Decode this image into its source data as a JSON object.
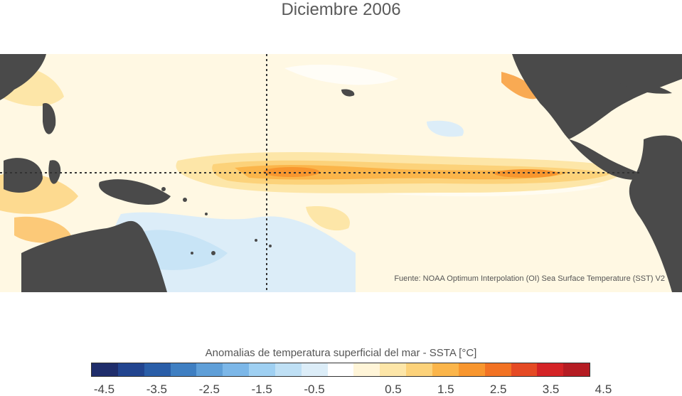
{
  "title": "Diciembre 2006",
  "source": "Fuente: NOAA Optimum Interpolation (OI) Sea Surface Temperature (SST) V2",
  "legend": {
    "title": "Anomalias de temperatura superficial del mar - SSTA  [°C]",
    "colors": [
      "#1f2d6b",
      "#22448f",
      "#2a5ea8",
      "#3f7fc2",
      "#5f9fd8",
      "#7cb7e8",
      "#9fd0f2",
      "#bfe0f5",
      "#dcedf8",
      "#ffffff",
      "#fff5d8",
      "#fde6a8",
      "#fcd27a",
      "#fbb54a",
      "#f8962e",
      "#f27223",
      "#e54a24",
      "#d42326",
      "#b51c23"
    ],
    "ticks": [
      "-4.5",
      "-3.5",
      "-2.5",
      "-1.5",
      "-0.5",
      "0.5",
      "1.5",
      "2.5",
      "3.5",
      "4.5"
    ]
  },
  "colors": {
    "land": "#4a4a4a",
    "ocean_base": "#fff8e3",
    "gridline": "#333333"
  }
}
